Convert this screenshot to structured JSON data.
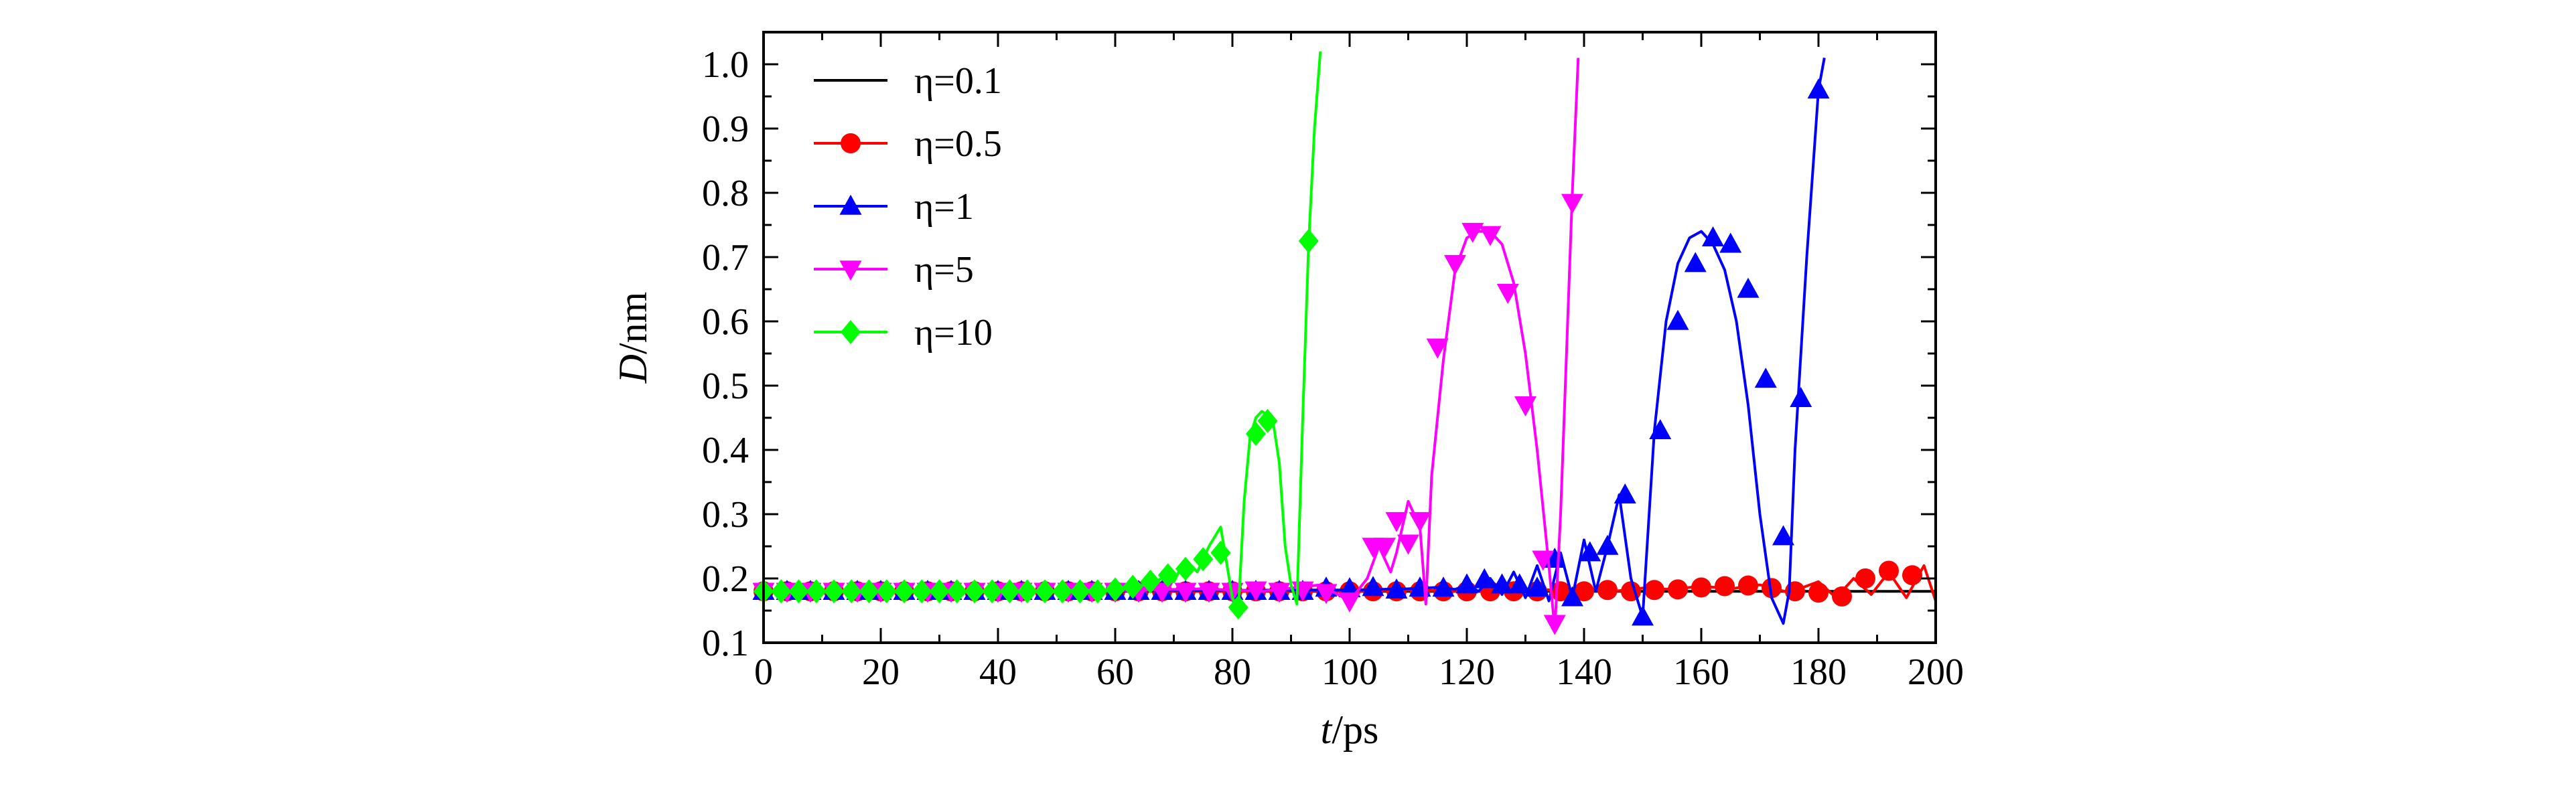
{
  "chart_data": {
    "type": "line",
    "xlabel": {
      "var": "t",
      "unit": "/ps"
    },
    "ylabel": {
      "var": "D",
      "unit": "/nm"
    },
    "xlim": [
      0,
      200
    ],
    "ylim": [
      0.1,
      1.05
    ],
    "xticks": [
      "0",
      "20",
      "40",
      "60",
      "80",
      "100",
      "120",
      "140",
      "160",
      "180",
      "200"
    ],
    "yticks": [
      "0.1",
      "0.2",
      "0.3",
      "0.4",
      "0.5",
      "0.6",
      "0.7",
      "0.8",
      "0.9",
      "1.0"
    ],
    "grid": false,
    "legend_position": "top-left",
    "series": [
      {
        "name": "η=0.1",
        "color": "#000000",
        "marker": "none",
        "x": [
          0,
          20,
          40,
          60,
          80,
          100,
          120,
          140,
          160,
          180,
          200
        ],
        "y": [
          0.18,
          0.18,
          0.18,
          0.18,
          0.18,
          0.18,
          0.18,
          0.18,
          0.18,
          0.18,
          0.18
        ]
      },
      {
        "name": "η=0.5",
        "color": "#ff0000",
        "marker": "circle",
        "x": [
          0,
          10,
          20,
          30,
          40,
          50,
          60,
          70,
          80,
          90,
          100,
          110,
          120,
          130,
          140,
          145,
          150,
          155,
          160,
          165,
          170,
          175,
          180,
          183,
          186,
          189,
          192,
          195,
          198,
          200
        ],
        "y": [
          0.18,
          0.18,
          0.18,
          0.18,
          0.18,
          0.18,
          0.18,
          0.18,
          0.18,
          0.181,
          0.18,
          0.182,
          0.18,
          0.182,
          0.183,
          0.18,
          0.185,
          0.183,
          0.188,
          0.184,
          0.19,
          0.178,
          0.195,
          0.17,
          0.2,
          0.175,
          0.21,
          0.17,
          0.22,
          0.165
        ],
        "markers_x": [
          0,
          4,
          8,
          12,
          16,
          20,
          24,
          28,
          32,
          36,
          40,
          44,
          48,
          52,
          56,
          60,
          64,
          68,
          72,
          76,
          80,
          84,
          88,
          92,
          96,
          100,
          104,
          108,
          112,
          116,
          120,
          124,
          128,
          132,
          136,
          140,
          144,
          148,
          152,
          156,
          160,
          164,
          168,
          172,
          176,
          180,
          184,
          188,
          192,
          196
        ],
        "markers_y": [
          0.18,
          0.18,
          0.18,
          0.18,
          0.18,
          0.18,
          0.18,
          0.18,
          0.18,
          0.18,
          0.18,
          0.18,
          0.18,
          0.18,
          0.18,
          0.18,
          0.18,
          0.18,
          0.18,
          0.18,
          0.18,
          0.18,
          0.18,
          0.18,
          0.18,
          0.18,
          0.18,
          0.18,
          0.18,
          0.18,
          0.18,
          0.18,
          0.18,
          0.18,
          0.18,
          0.18,
          0.182,
          0.18,
          0.182,
          0.183,
          0.186,
          0.188,
          0.189,
          0.185,
          0.18,
          0.178,
          0.172,
          0.2,
          0.212,
          0.205
        ]
      },
      {
        "name": "η=1",
        "color": "#0000ff",
        "marker": "triangle-up",
        "x": [
          0,
          50,
          90,
          100,
          110,
          115,
          118,
          120,
          122,
          124,
          126,
          128,
          130,
          132,
          134,
          136,
          138,
          140,
          142,
          144,
          146,
          148,
          150,
          152,
          154,
          156,
          158,
          160,
          162,
          164,
          166,
          168,
          170,
          172,
          174,
          175,
          176,
          178,
          180,
          181
        ],
        "y": [
          0.18,
          0.18,
          0.182,
          0.182,
          0.184,
          0.186,
          0.183,
          0.19,
          0.18,
          0.2,
          0.175,
          0.21,
          0.17,
          0.22,
          0.165,
          0.24,
          0.17,
          0.26,
          0.18,
          0.25,
          0.33,
          0.2,
          0.14,
          0.43,
          0.6,
          0.69,
          0.73,
          0.74,
          0.72,
          0.68,
          0.6,
          0.47,
          0.3,
          0.17,
          0.13,
          0.18,
          0.4,
          0.7,
          0.96,
          1.01
        ],
        "markers_x": [
          0,
          4,
          8,
          12,
          16,
          20,
          24,
          28,
          32,
          36,
          40,
          44,
          48,
          52,
          56,
          60,
          64,
          68,
          72,
          76,
          80,
          84,
          88,
          92,
          96,
          100,
          104,
          108,
          112,
          116,
          120,
          123,
          126,
          129,
          132,
          135,
          138,
          141,
          144,
          147,
          150,
          153,
          156,
          159,
          162,
          165,
          168,
          171,
          174,
          177,
          180
        ],
        "markers_y": [
          0.18,
          0.18,
          0.18,
          0.18,
          0.18,
          0.18,
          0.18,
          0.18,
          0.18,
          0.18,
          0.18,
          0.18,
          0.18,
          0.18,
          0.18,
          0.18,
          0.18,
          0.18,
          0.18,
          0.18,
          0.18,
          0.18,
          0.18,
          0.18,
          0.185,
          0.184,
          0.186,
          0.182,
          0.185,
          0.185,
          0.19,
          0.198,
          0.19,
          0.19,
          0.185,
          0.23,
          0.17,
          0.24,
          0.25,
          0.33,
          0.14,
          0.43,
          0.6,
          0.69,
          0.73,
          0.72,
          0.65,
          0.51,
          0.265,
          0.48,
          0.96
        ]
      },
      {
        "name": "η=5",
        "color": "#ff00ff",
        "marker": "triangle-down",
        "x": [
          0,
          60,
          75,
          85,
          95,
          100,
          103,
          105,
          107,
          108,
          110,
          112,
          113,
          114,
          116,
          118,
          120,
          122,
          124,
          126,
          128,
          130,
          132,
          134,
          135,
          136,
          137,
          138,
          139
        ],
        "y": [
          0.18,
          0.181,
          0.184,
          0.18,
          0.19,
          0.165,
          0.2,
          0.25,
          0.21,
          0.24,
          0.32,
          0.28,
          0.16,
          0.36,
          0.54,
          0.68,
          0.73,
          0.74,
          0.74,
          0.72,
          0.66,
          0.55,
          0.4,
          0.22,
          0.12,
          0.3,
          0.55,
          0.8,
          1.01
        ],
        "markers_x": [
          0,
          4,
          8,
          12,
          16,
          20,
          24,
          28,
          32,
          36,
          40,
          44,
          48,
          52,
          56,
          60,
          64,
          68,
          72,
          76,
          80,
          84,
          88,
          92,
          96,
          100,
          104,
          106,
          108,
          110,
          112,
          115,
          118,
          121,
          124,
          127,
          130,
          133,
          135,
          138
        ],
        "markers_y": [
          0.18,
          0.18,
          0.18,
          0.18,
          0.18,
          0.18,
          0.18,
          0.18,
          0.18,
          0.18,
          0.18,
          0.18,
          0.18,
          0.18,
          0.18,
          0.18,
          0.18,
          0.18,
          0.18,
          0.18,
          0.18,
          0.182,
          0.18,
          0.182,
          0.178,
          0.165,
          0.25,
          0.25,
          0.29,
          0.255,
          0.29,
          0.56,
          0.69,
          0.74,
          0.735,
          0.645,
          0.47,
          0.23,
          0.13,
          0.785
        ]
      },
      {
        "name": "η=10",
        "color": "#00ff00",
        "marker": "diamond",
        "x": [
          0,
          40,
          60,
          65,
          68,
          70,
          72,
          74,
          76,
          78,
          80,
          81,
          82,
          83,
          84,
          85,
          86,
          87,
          88,
          89,
          90,
          91,
          92,
          93,
          94,
          95
        ],
        "y": [
          0.18,
          0.18,
          0.182,
          0.19,
          0.2,
          0.195,
          0.23,
          0.21,
          0.25,
          0.28,
          0.17,
          0.15,
          0.32,
          0.42,
          0.45,
          0.46,
          0.455,
          0.44,
          0.38,
          0.25,
          0.19,
          0.16,
          0.45,
          0.72,
          0.9,
          1.02
        ],
        "markers_x": [
          0,
          3,
          6,
          9,
          12,
          15,
          18,
          21,
          24,
          27,
          30,
          33,
          36,
          39,
          42,
          45,
          48,
          51,
          54,
          57,
          60,
          63,
          66,
          69,
          72,
          75,
          78,
          81,
          84,
          86,
          93
        ],
        "markers_y": [
          0.18,
          0.18,
          0.18,
          0.18,
          0.18,
          0.18,
          0.18,
          0.18,
          0.18,
          0.18,
          0.18,
          0.18,
          0.18,
          0.18,
          0.18,
          0.18,
          0.18,
          0.18,
          0.18,
          0.18,
          0.183,
          0.187,
          0.195,
          0.205,
          0.215,
          0.23,
          0.24,
          0.155,
          0.425,
          0.445,
          0.725
        ]
      }
    ]
  }
}
